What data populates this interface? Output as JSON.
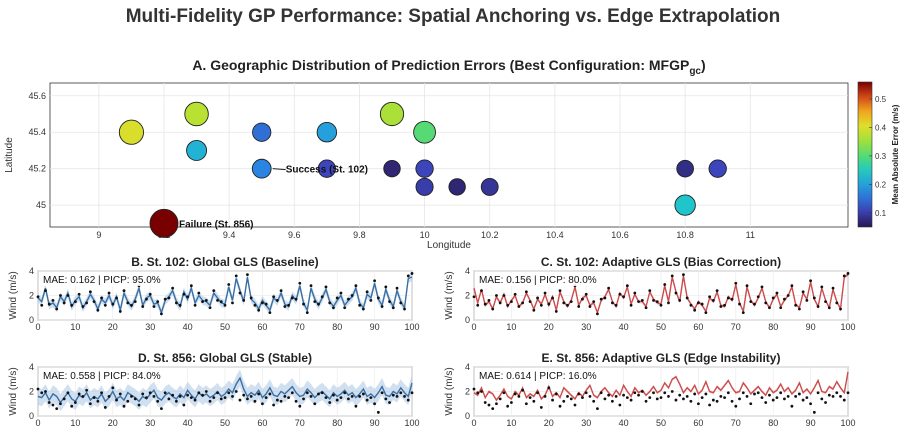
{
  "title": "Multi-Fidelity GP Performance: Spatial Anchoring vs. Edge Extrapolation",
  "chart_data": [
    {
      "id": "A",
      "type": "scatter",
      "title": "A. Geographic Distribution of Prediction Errors (Best Configuration: MFGP",
      "title_sub": "gc",
      "title_suffix": ")",
      "xlabel": "Longitude",
      "ylabel": "Latitude",
      "xlim": [
        8.85,
        11.3
      ],
      "ylim": [
        44.88,
        45.67
      ],
      "xticks": [
        "9",
        "9.2",
        "9.4",
        "9.6",
        "9.8",
        "10",
        "10.2",
        "10.4",
        "10.6",
        "10.8",
        "11"
      ],
      "xtick_values": [
        9,
        9.2,
        9.4,
        9.6,
        9.8,
        10,
        10.2,
        10.4,
        10.6,
        10.8,
        11
      ],
      "yticks": [
        "45",
        "45.2",
        "45.4",
        "45.6"
      ],
      "ytick_values": [
        45,
        45.2,
        45.4,
        45.6
      ],
      "colorbar": {
        "label": "Mean Absolute Error (m/s)",
        "range": [
          0.05,
          0.56
        ],
        "ticks": [
          "0.1",
          "0.2",
          "0.3",
          "0.4",
          "0.5"
        ],
        "tick_values": [
          0.1,
          0.2,
          0.3,
          0.4,
          0.5
        ]
      },
      "points": [
        {
          "x": 9.1,
          "y": 45.4,
          "mae": 0.4
        },
        {
          "x": 9.3,
          "y": 45.5,
          "mae": 0.37
        },
        {
          "x": 9.3,
          "y": 45.3,
          "mae": 0.22
        },
        {
          "x": 9.5,
          "y": 45.4,
          "mae": 0.15
        },
        {
          "x": 9.5,
          "y": 45.2,
          "mae": 0.17
        },
        {
          "x": 9.7,
          "y": 45.4,
          "mae": 0.2
        },
        {
          "x": 9.7,
          "y": 45.2,
          "mae": 0.11
        },
        {
          "x": 9.9,
          "y": 45.5,
          "mae": 0.36
        },
        {
          "x": 9.9,
          "y": 45.2,
          "mae": 0.07
        },
        {
          "x": 10.0,
          "y": 45.4,
          "mae": 0.3
        },
        {
          "x": 10.0,
          "y": 45.2,
          "mae": 0.11
        },
        {
          "x": 10.0,
          "y": 45.1,
          "mae": 0.1
        },
        {
          "x": 10.1,
          "y": 45.1,
          "mae": 0.07
        },
        {
          "x": 10.2,
          "y": 45.1,
          "mae": 0.09
        },
        {
          "x": 10.8,
          "y": 45.2,
          "mae": 0.08
        },
        {
          "x": 10.9,
          "y": 45.2,
          "mae": 0.11
        },
        {
          "x": 10.8,
          "y": 45.0,
          "mae": 0.24
        },
        {
          "x": 9.2,
          "y": 44.9,
          "mae": 0.56
        }
      ],
      "annotations": [
        {
          "text": "Success (St. 102)",
          "x": 9.5,
          "y": 45.2
        },
        {
          "text": "Failure (St. 856)",
          "x": 9.2,
          "y": 44.9
        }
      ]
    },
    {
      "id": "B",
      "type": "line",
      "title": "B. St. 102: Global GLS (Baseline)",
      "stats": "MAE: 0.162 | PICP: 95.0%",
      "color": "#3a6fa3",
      "band_color": "#a9c6e4",
      "ylabel": "Wind (m/s)",
      "xlim": [
        0,
        100
      ],
      "ylim": [
        0,
        4
      ],
      "xticks": [
        "0",
        "10",
        "20",
        "30",
        "40",
        "50",
        "60",
        "70",
        "80",
        "90",
        "100"
      ],
      "yticks": [
        "0",
        "2",
        "4"
      ],
      "pred": [
        1.8,
        1.5,
        2.6,
        1.2,
        1.4,
        1.0,
        1.9,
        1.5,
        2.2,
        1.1,
        1.6,
        1.9,
        1.0,
        1.5,
        2.1,
        1.6,
        0.9,
        1.7,
        1.4,
        2.0,
        1.2,
        1.9,
        0.8,
        2.2,
        1.5,
        1.1,
        1.7,
        2.6,
        1.2,
        1.8,
        2.0,
        1.3,
        1.4,
        0.6,
        1.6,
        1.9,
        2.4,
        1.5,
        1.1,
        2.3,
        1.7,
        2.6,
        1.4,
        2.0,
        1.6,
        1.5,
        1.2,
        2.2,
        1.8,
        1.4,
        1.3,
        2.7,
        1.6,
        3.4,
        2.4,
        1.5,
        3.5,
        1.7,
        1.4,
        0.9,
        1.6,
        1.2,
        0.8,
        1.8,
        1.5,
        2.2,
        1.3,
        1.1,
        2.0,
        1.6,
        2.8,
        1.4,
        0.8,
        2.6,
        1.7,
        1.2,
        1.8,
        2.5,
        1.5,
        1.1,
        1.6,
        2.0,
        1.2,
        1.6,
        1.9,
        2.6,
        1.4,
        1.0,
        2.1,
        1.8,
        3.0,
        1.7,
        1.2,
        2.5,
        1.6,
        1.1,
        2.4,
        1.5,
        1.0,
        3.4,
        3.5
      ],
      "band": [
        0.35,
        0.35
      ],
      "obs": [
        1.9,
        1.2,
        2.4,
        1.3,
        1.6,
        0.9,
        2.0,
        1.4,
        2.0,
        1.2,
        1.5,
        2.1,
        1.1,
        1.4,
        2.3,
        1.5,
        0.8,
        1.8,
        1.2,
        2.2,
        1.3,
        1.8,
        0.7,
        2.4,
        1.4,
        1.2,
        1.5,
        2.8,
        1.1,
        1.7,
        2.1,
        1.1,
        1.5,
        0.5,
        1.7,
        1.8,
        2.6,
        1.4,
        1.2,
        2.1,
        1.9,
        2.8,
        1.2,
        2.2,
        1.5,
        1.6,
        1.0,
        2.4,
        1.6,
        1.5,
        1.2,
        2.9,
        1.4,
        3.6,
        2.2,
        1.6,
        3.7,
        1.8,
        1.2,
        0.8,
        1.4,
        1.3,
        0.6,
        1.9,
        1.6,
        2.4,
        1.1,
        1.2,
        1.8,
        1.7,
        3.0,
        1.3,
        0.6,
        2.8,
        1.5,
        1.3,
        1.9,
        2.7,
        1.4,
        1.0,
        1.8,
        2.2,
        1.0,
        1.7,
        2.0,
        2.8,
        1.2,
        0.9,
        2.3,
        1.6,
        3.2,
        1.8,
        1.1,
        2.7,
        1.5,
        1.0,
        2.6,
        1.4,
        0.9,
        3.6,
        3.8
      ]
    },
    {
      "id": "C",
      "type": "line",
      "title": "C. St. 102: Adaptive GLS (Bias Correction)",
      "stats": "MAE: 0.156 | PICP: 80.0%",
      "color": "#cc4b4b",
      "band_color": "#eeb3b3",
      "ylabel": "Wind (m/s)",
      "xlim": [
        0,
        100
      ],
      "ylim": [
        0,
        4
      ],
      "xticks": [
        "0",
        "10",
        "20",
        "30",
        "40",
        "50",
        "60",
        "70",
        "80",
        "90",
        "100"
      ],
      "yticks": [
        "0",
        "2",
        "4"
      ],
      "pred": [
        2.6,
        1.4,
        2.5,
        1.2,
        1.5,
        0.9,
        1.9,
        1.4,
        2.1,
        1.1,
        1.6,
        2.0,
        1.1,
        1.4,
        2.2,
        1.6,
        0.9,
        1.7,
        1.3,
        2.1,
        1.2,
        1.9,
        0.8,
        2.3,
        1.5,
        1.1,
        1.6,
        2.7,
        1.2,
        1.8,
        2.0,
        1.2,
        1.4,
        0.6,
        1.6,
        1.9,
        2.5,
        1.5,
        1.1,
        2.2,
        1.8,
        2.7,
        1.3,
        2.1,
        1.5,
        1.5,
        1.1,
        2.3,
        1.7,
        1.4,
        1.3,
        2.8,
        1.5,
        3.5,
        2.3,
        1.5,
        3.6,
        1.8,
        1.3,
        0.9,
        1.5,
        1.2,
        0.7,
        1.8,
        1.5,
        2.3,
        1.2,
        1.1,
        1.9,
        1.6,
        2.9,
        1.4,
        0.7,
        2.7,
        1.6,
        1.2,
        1.8,
        2.6,
        1.5,
        1.0,
        1.7,
        2.1,
        1.1,
        1.6,
        2.0,
        2.7,
        1.3,
        1.0,
        2.2,
        1.7,
        3.1,
        1.7,
        1.1,
        2.6,
        1.6,
        1.0,
        2.5,
        1.5,
        0.9,
        3.5,
        3.7
      ],
      "band": [
        0.15,
        0.15
      ],
      "obs": [
        1.9,
        1.2,
        2.4,
        1.3,
        1.6,
        0.9,
        2.0,
        1.4,
        2.0,
        1.2,
        1.5,
        2.1,
        1.1,
        1.4,
        2.3,
        1.5,
        0.8,
        1.8,
        1.2,
        2.2,
        1.3,
        1.8,
        0.7,
        2.4,
        1.4,
        1.2,
        1.5,
        2.8,
        1.1,
        1.7,
        2.1,
        1.1,
        1.5,
        0.5,
        1.7,
        1.8,
        2.6,
        1.4,
        1.2,
        2.1,
        1.9,
        2.8,
        1.2,
        2.2,
        1.5,
        1.6,
        1.0,
        2.4,
        1.6,
        1.5,
        1.2,
        2.9,
        1.4,
        3.6,
        2.2,
        1.6,
        3.7,
        1.8,
        1.2,
        0.8,
        1.4,
        1.3,
        0.6,
        1.9,
        1.6,
        2.4,
        1.1,
        1.2,
        1.8,
        1.7,
        3.0,
        1.3,
        0.6,
        2.8,
        1.5,
        1.3,
        1.9,
        2.7,
        1.4,
        1.0,
        1.8,
        2.2,
        1.0,
        1.7,
        2.0,
        2.8,
        1.2,
        0.9,
        2.3,
        1.6,
        3.2,
        1.8,
        1.1,
        2.7,
        1.5,
        1.0,
        2.6,
        1.4,
        0.9,
        3.6,
        3.8
      ]
    },
    {
      "id": "D",
      "type": "line",
      "title": "D. St. 856: Global GLS (Stable)",
      "stats": "MAE: 0.558 | PICP: 84.0%",
      "color": "#3a6fa3",
      "band_color": "#a9c6e4",
      "ylabel": "Wind (m/s)",
      "xlim": [
        0,
        100
      ],
      "ylim": [
        0,
        4
      ],
      "xticks": [
        "0",
        "10",
        "20",
        "30",
        "40",
        "50",
        "60",
        "70",
        "80",
        "90",
        "100"
      ],
      "yticks": [
        "0",
        "2",
        "4"
      ],
      "pred": [
        1.6,
        1.5,
        1.9,
        1.3,
        1.8,
        1.6,
        1.1,
        1.5,
        1.9,
        1.4,
        1.2,
        1.7,
        1.5,
        1.9,
        1.3,
        1.6,
        1.4,
        1.8,
        1.2,
        1.5,
        2.0,
        1.4,
        1.6,
        1.3,
        1.9,
        1.7,
        1.5,
        1.2,
        1.6,
        1.4,
        1.8,
        2.1,
        1.5,
        1.3,
        1.7,
        1.9,
        1.6,
        1.4,
        1.8,
        1.5,
        2.1,
        1.7,
        1.4,
        1.9,
        1.6,
        1.8,
        1.5,
        1.7,
        2.0,
        1.6,
        1.8,
        2.2,
        1.9,
        2.6,
        3.1,
        2.2,
        1.6,
        1.9,
        1.7,
        2.1,
        1.5,
        1.8,
        2.3,
        1.7,
        1.6,
        2.0,
        1.8,
        2.1,
        2.4,
        1.9,
        1.6,
        1.7,
        2.2,
        1.9,
        1.5,
        1.8,
        2.0,
        1.7,
        1.4,
        1.9,
        1.6,
        1.8,
        2.1,
        1.7,
        1.9,
        1.5,
        1.8,
        2.2,
        1.6,
        1.8,
        1.5,
        1.9,
        2.4,
        1.7,
        1.6,
        2.0,
        1.8,
        2.3,
        1.9,
        1.6,
        2.7
      ],
      "band": [
        0.7,
        0.7
      ],
      "obs": [
        2.2,
        1.9,
        2.0,
        1.1,
        0.9,
        0.6,
        1.0,
        1.4,
        1.9,
        0.8,
        1.1,
        1.8,
        1.6,
        2.1,
        1.0,
        1.5,
        1.2,
        1.9,
        0.7,
        1.6,
        2.3,
        1.3,
        1.8,
        0.8,
        1.2,
        1.6,
        1.4,
        0.9,
        1.8,
        1.5,
        1.9,
        1.6,
        1.2,
        0.6,
        1.9,
        1.4,
        1.7,
        1.2,
        1.6,
        0.9,
        1.7,
        1.5,
        1.3,
        1.9,
        1.7,
        2.0,
        1.2,
        1.5,
        1.9,
        1.4,
        1.5,
        1.9,
        1.6,
        2.0,
        1.3,
        1.7,
        1.4,
        1.6,
        1.2,
        1.8,
        1.0,
        1.5,
        1.8,
        0.9,
        1.3,
        1.2,
        1.6,
        1.5,
        1.9,
        1.2,
        0.8,
        1.4,
        1.9,
        1.6,
        1.0,
        1.8,
        1.9,
        1.5,
        1.1,
        1.7,
        1.3,
        1.5,
        1.9,
        1.4,
        1.6,
        0.8,
        1.6,
        1.8,
        1.3,
        1.5,
        1.0,
        0.3,
        1.9,
        1.4,
        1.1,
        1.7,
        1.6,
        1.9,
        1.6,
        1.3,
        1.9
      ]
    },
    {
      "id": "E",
      "type": "line",
      "title": "E. St. 856: Adaptive GLS (Edge Instability)",
      "stats": "MAE: 0.614 | PICP: 16.0%",
      "color": "#cc4b4b",
      "band_color": "#eeb3b3",
      "ylabel": "Wind (m/s)",
      "xlim": [
        0,
        100
      ],
      "ylim": [
        0,
        4
      ],
      "xticks": [
        "0",
        "10",
        "20",
        "30",
        "40",
        "50",
        "60",
        "70",
        "80",
        "90",
        "100"
      ],
      "yticks": [
        "0",
        "2",
        "4"
      ],
      "pred": [
        1.9,
        1.7,
        2.3,
        1.5,
        2.0,
        1.8,
        1.3,
        1.7,
        2.2,
        1.6,
        1.4,
        2.0,
        1.7,
        2.3,
        1.5,
        1.8,
        1.6,
        2.1,
        1.4,
        1.7,
        2.4,
        1.6,
        1.9,
        1.5,
        2.3,
        2.0,
        1.7,
        1.4,
        1.9,
        1.6,
        2.1,
        2.5,
        1.7,
        1.5,
        2.0,
        2.3,
        1.9,
        1.6,
        2.1,
        1.7,
        2.5,
        2.0,
        1.6,
        2.3,
        1.9,
        2.1,
        1.7,
        2.0,
        2.4,
        1.9,
        2.1,
        2.7,
        2.3,
        3.0,
        3.2,
        2.6,
        1.9,
        2.3,
        2.0,
        2.5,
        1.8,
        2.1,
        2.8,
        2.0,
        1.9,
        2.4,
        2.1,
        2.5,
        2.9,
        2.3,
        1.9,
        2.0,
        2.7,
        2.3,
        1.8,
        2.1,
        2.4,
        2.0,
        1.7,
        2.3,
        1.9,
        2.1,
        2.6,
        2.0,
        2.3,
        1.8,
        2.1,
        2.7,
        1.9,
        2.2,
        1.8,
        2.3,
        2.9,
        2.0,
        1.9,
        2.4,
        2.2,
        2.8,
        2.3,
        1.9,
        3.6
      ],
      "band": [
        0.12,
        0.12
      ],
      "obs": [
        2.2,
        1.9,
        2.0,
        1.1,
        0.9,
        0.6,
        1.0,
        1.4,
        1.9,
        0.8,
        1.1,
        1.8,
        1.6,
        2.1,
        1.0,
        1.5,
        1.2,
        1.9,
        0.7,
        1.6,
        2.3,
        1.3,
        1.8,
        0.8,
        1.2,
        1.6,
        1.4,
        0.9,
        1.8,
        1.5,
        1.9,
        1.6,
        1.2,
        0.6,
        1.9,
        1.4,
        1.7,
        1.2,
        1.6,
        0.9,
        1.7,
        1.5,
        1.3,
        1.9,
        1.7,
        2.0,
        1.2,
        1.5,
        1.9,
        1.4,
        1.5,
        1.9,
        1.6,
        2.0,
        1.3,
        1.7,
        1.4,
        1.6,
        1.2,
        1.8,
        1.0,
        1.5,
        1.8,
        0.9,
        1.3,
        1.2,
        1.6,
        1.5,
        1.9,
        1.2,
        0.8,
        1.4,
        1.9,
        1.6,
        1.0,
        1.8,
        1.9,
        1.5,
        1.1,
        1.7,
        1.3,
        1.5,
        1.9,
        1.4,
        1.6,
        0.8,
        1.6,
        1.8,
        1.3,
        1.5,
        1.0,
        0.3,
        1.9,
        1.4,
        1.1,
        1.7,
        1.6,
        1.9,
        1.6,
        1.3,
        1.9
      ]
    }
  ]
}
